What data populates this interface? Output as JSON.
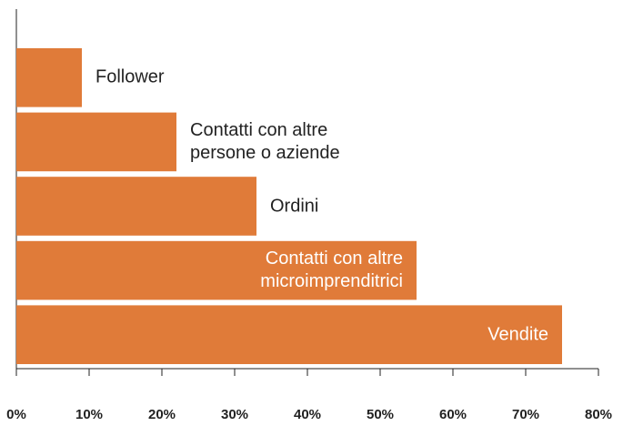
{
  "chart_data": {
    "type": "bar",
    "orientation": "horizontal",
    "categories": [
      "Follower",
      "Contatti con altre\npersone o aziende",
      "Ordini",
      "Contatti con altre\nmicroimprenditrici",
      "Vendite"
    ],
    "values": [
      9,
      22,
      33,
      55,
      75
    ],
    "color": "#e07b39",
    "xlim": [
      0,
      80
    ],
    "xticks": [
      {
        "value": 0,
        "label": "0%"
      },
      {
        "value": 10,
        "label": "10%"
      },
      {
        "value": 20,
        "label": "20%"
      },
      {
        "value": 30,
        "label": "30%"
      },
      {
        "value": 40,
        "label": "40%"
      },
      {
        "value": 50,
        "label": "50%"
      },
      {
        "value": 60,
        "label": "60%"
      },
      {
        "value": 70,
        "label": "70%"
      },
      {
        "value": 80,
        "label": "80%"
      }
    ],
    "grid": false
  }
}
